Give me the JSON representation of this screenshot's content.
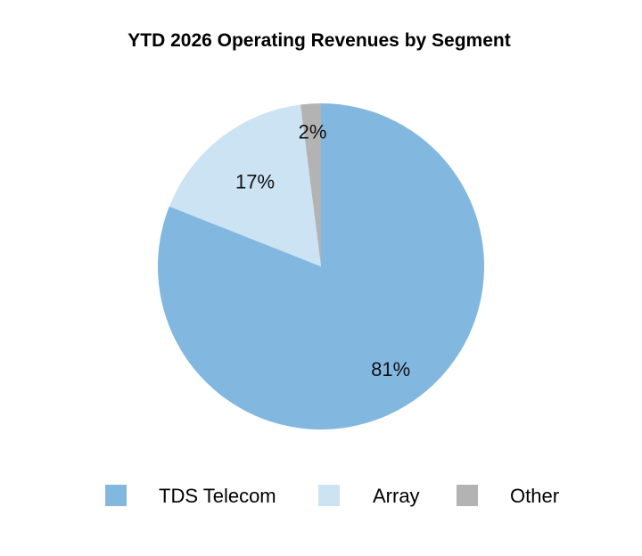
{
  "chart_data": {
    "type": "pie",
    "title": "YTD 2026 Operating Revenues by Segment",
    "slices": [
      {
        "name": "TDS Telecom",
        "value": 81,
        "label": "81%",
        "color": "#82b8e0"
      },
      {
        "name": "Array",
        "value": 17,
        "label": "17%",
        "color": "#cce3f3"
      },
      {
        "name": "Other",
        "value": 2,
        "label": "2%",
        "color": "#b3b3b3"
      }
    ],
    "legend_position": "bottom",
    "start_angle": "12 o'clock",
    "direction": "clockwise"
  }
}
